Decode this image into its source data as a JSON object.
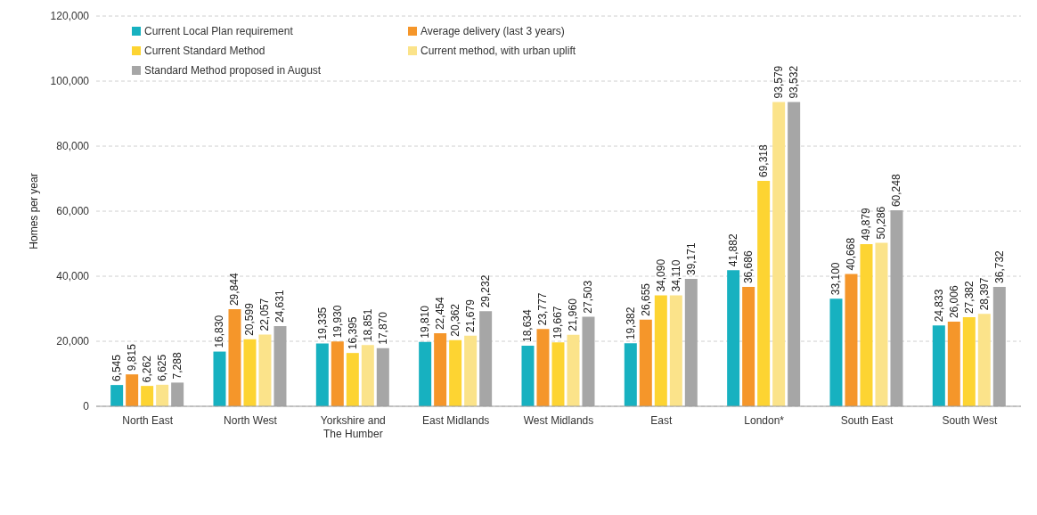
{
  "chart_data": {
    "type": "bar",
    "ylabel": "Homes per year",
    "categories": [
      "North East",
      "North West",
      "Yorkshire and The Humber",
      "East Midlands",
      "West Midlands",
      "East",
      "London*",
      "South East",
      "South West"
    ],
    "series": [
      {
        "name": "Current Local Plan requirement",
        "color": "#17b1c0",
        "values": [
          6545,
          16830,
          19335,
          19810,
          18634,
          19382,
          41882,
          33100,
          24833
        ],
        "value_labels": [
          "6,545",
          "16,830",
          "19,335",
          "19,810",
          "18,634",
          "19,382",
          "41,882",
          "33,100",
          "24,833"
        ]
      },
      {
        "name": "Average delivery (last 3 years)",
        "color": "#f5962a",
        "values": [
          9815,
          29844,
          19930,
          22454,
          23777,
          26655,
          36686,
          40668,
          26006
        ],
        "value_labels": [
          "9,815",
          "29,844",
          "19,930",
          "22,454",
          "23,777",
          "26,655",
          "36,686",
          "40,668",
          "26,006"
        ]
      },
      {
        "name": "Current Standard Method",
        "color": "#fdd432",
        "values": [
          6262,
          20599,
          16395,
          20362,
          19667,
          34090,
          69318,
          49879,
          27382
        ],
        "value_labels": [
          "6,262",
          "20,599",
          "16,395",
          "20,362",
          "19,667",
          "34,090",
          "69,318",
          "49,879",
          "27,382"
        ]
      },
      {
        "name": "Current method, with urban uplift",
        "color": "#fbe38a",
        "values": [
          6625,
          22057,
          18851,
          21679,
          21960,
          34110,
          93579,
          50286,
          28397
        ],
        "value_labels": [
          "6,625",
          "22,057",
          "18,851",
          "21,679",
          "21,960",
          "34,110",
          "93,579",
          "50,286",
          "28,397"
        ]
      },
      {
        "name": "Standard Method proposed in August",
        "color": "#a6a6a6",
        "values": [
          7288,
          24631,
          17870,
          29232,
          27503,
          39171,
          93532,
          60248,
          36732
        ],
        "value_labels": [
          "7,288",
          "24,631",
          "17,870",
          "29,232",
          "27,503",
          "39,171",
          "93,532",
          "60,248",
          "36,732"
        ]
      }
    ],
    "ylim": [
      0,
      120000
    ],
    "yticks": [
      {
        "value": 0,
        "label": "0"
      },
      {
        "value": 20000,
        "label": "20,000"
      },
      {
        "value": 40000,
        "label": "40,000"
      },
      {
        "value": 60000,
        "label": "60,000"
      },
      {
        "value": 80000,
        "label": "80,000"
      },
      {
        "value": 100000,
        "label": "100,000"
      },
      {
        "value": 120000,
        "label": "120,000"
      }
    ],
    "grid": "y",
    "legend": "top left"
  }
}
